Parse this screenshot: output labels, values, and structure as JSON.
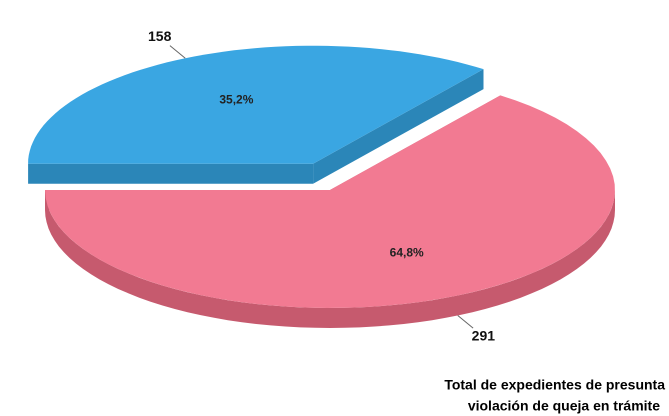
{
  "chart_data": {
    "type": "pie",
    "title": [
      "Total de expedientes de presunta",
      "violación  de queja en trámite"
    ],
    "values": [
      35.2,
      64.8
    ],
    "value_labels": [
      "35,2%",
      "64,8%"
    ],
    "counts": [
      158,
      291
    ],
    "colors": [
      "#3aa6e2",
      "#f27a92"
    ],
    "side_colors": [
      "#2b86b8",
      "#c65a6e"
    ]
  }
}
